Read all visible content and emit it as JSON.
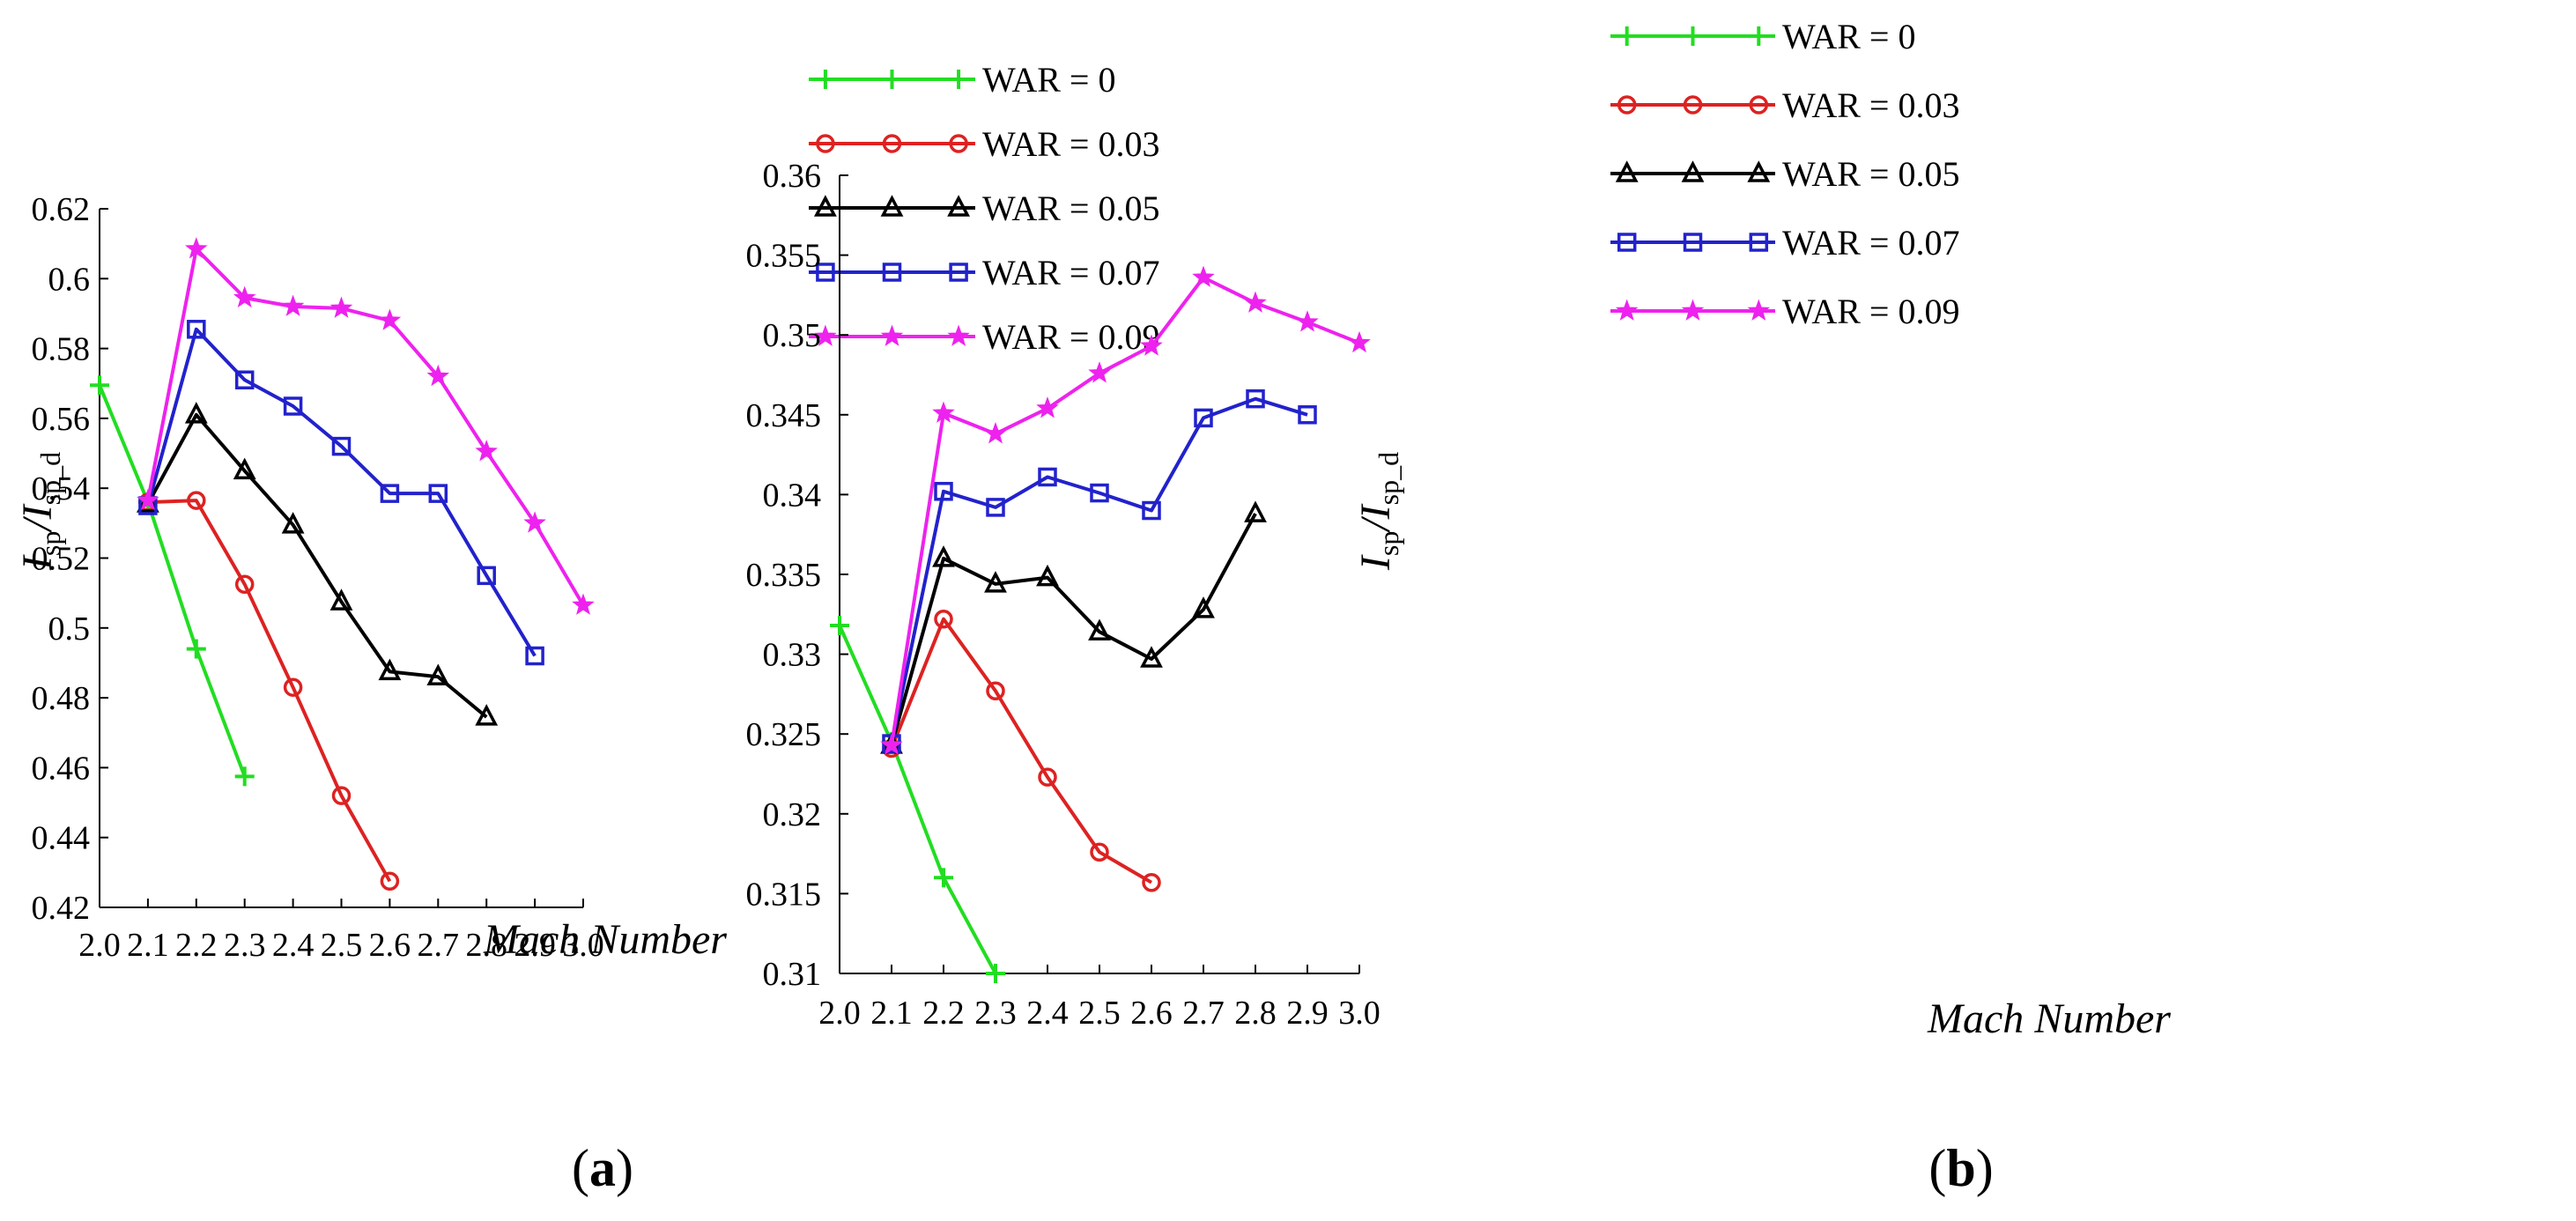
{
  "chart_data": [
    {
      "type": "line",
      "panel_label": "a",
      "xlabel": "Mach Number",
      "ylabel_main": "I",
      "ylabel_sub1": "sp",
      "ylabel_sub2": "sp_d",
      "x_ticks": [
        "2.0",
        "2.1",
        "2.2",
        "2.3",
        "2.4",
        "2.5",
        "2.6",
        "2.7",
        "2.8",
        "2.9",
        "3.0"
      ],
      "y_ticks": [
        "0.42",
        "0.44",
        "0.46",
        "0.48",
        "0.5",
        "0.52",
        "0.54",
        "0.56",
        "0.58",
        "0.6",
        "0.62"
      ],
      "xlim": [
        2.0,
        3.0
      ],
      "ylim": [
        0.42,
        0.62
      ],
      "legend_position": "top-right",
      "series": [
        {
          "name": "WAR = 0",
          "color": "#22dd22",
          "marker": "plus",
          "x": [
            2.0,
            2.1,
            2.2,
            2.3
          ],
          "values": [
            0.5695,
            0.536,
            0.494,
            0.4575
          ]
        },
        {
          "name": "WAR = 0.03",
          "color": "#dd2222",
          "marker": "circle",
          "x": [
            2.1,
            2.2,
            2.3,
            2.4,
            2.5,
            2.6
          ],
          "values": [
            0.536,
            0.5365,
            0.5125,
            0.483,
            0.452,
            0.4275
          ]
        },
        {
          "name": "WAR = 0.05",
          "color": "#000000",
          "marker": "triangle",
          "x": [
            2.1,
            2.2,
            2.3,
            2.4,
            2.5,
            2.6,
            2.7,
            2.8
          ],
          "values": [
            0.5355,
            0.561,
            0.545,
            0.5295,
            0.5075,
            0.4875,
            0.486,
            0.4745
          ]
        },
        {
          "name": "WAR = 0.07",
          "color": "#2222cc",
          "marker": "square",
          "x": [
            2.1,
            2.2,
            2.3,
            2.4,
            2.5,
            2.6,
            2.7,
            2.8,
            2.9
          ],
          "values": [
            0.535,
            0.5855,
            0.571,
            0.5635,
            0.552,
            0.5385,
            0.5385,
            0.515,
            0.492
          ]
        },
        {
          "name": "WAR = 0.09",
          "color": "#ee22ee",
          "marker": "star",
          "x": [
            2.1,
            2.2,
            2.3,
            2.4,
            2.5,
            2.6,
            2.7,
            2.8,
            2.9,
            3.0
          ],
          "values": [
            0.5365,
            0.6085,
            0.5945,
            0.592,
            0.5915,
            0.588,
            0.572,
            0.5505,
            0.53,
            0.5065
          ]
        }
      ]
    },
    {
      "type": "line",
      "panel_label": "b",
      "xlabel": "Mach Number",
      "ylabel_main": "I",
      "ylabel_sub1": "sp",
      "ylabel_sub2": "sp_d",
      "x_ticks": [
        "2.0",
        "2.1",
        "2.2",
        "2.3",
        "2.4",
        "2.5",
        "2.6",
        "2.7",
        "2.8",
        "2.9",
        "3.0"
      ],
      "y_ticks": [
        "0.31",
        "0.315",
        "0.32",
        "0.325",
        "0.33",
        "0.335",
        "0.34",
        "0.345",
        "0.35",
        "0.355",
        "0.36"
      ],
      "xlim": [
        2.0,
        3.0
      ],
      "ylim": [
        0.31,
        0.36
      ],
      "legend_position": "top-left",
      "series": [
        {
          "name": "WAR = 0",
          "color": "#22dd22",
          "marker": "plus",
          "x": [
            2.0,
            2.1,
            2.2,
            2.3
          ],
          "values": [
            0.3318,
            0.3245,
            0.316,
            0.31
          ]
        },
        {
          "name": "WAR = 0.03",
          "color": "#dd2222",
          "marker": "circle",
          "x": [
            2.1,
            2.2,
            2.3,
            2.4,
            2.5,
            2.6
          ],
          "values": [
            0.3241,
            0.3322,
            0.3277,
            0.3223,
            0.3176,
            0.3157
          ]
        },
        {
          "name": "WAR = 0.05",
          "color": "#000000",
          "marker": "triangle",
          "x": [
            2.1,
            2.2,
            2.3,
            2.4,
            2.5,
            2.6,
            2.7,
            2.8
          ],
          "values": [
            0.3243,
            0.336,
            0.3344,
            0.3348,
            0.3314,
            0.3297,
            0.3328,
            0.3388
          ]
        },
        {
          "name": "WAR = 0.07",
          "color": "#2222cc",
          "marker": "square",
          "x": [
            2.1,
            2.2,
            2.3,
            2.4,
            2.5,
            2.6,
            2.7,
            2.8,
            2.9
          ],
          "values": [
            0.3244,
            0.3402,
            0.3392,
            0.3411,
            0.3401,
            0.339,
            0.3448,
            0.346,
            0.345
          ]
        },
        {
          "name": "WAR = 0.09",
          "color": "#ee22ee",
          "marker": "star",
          "x": [
            2.1,
            2.2,
            2.3,
            2.4,
            2.5,
            2.6,
            2.7,
            2.8,
            2.9,
            3.0
          ],
          "values": [
            0.3243,
            0.3451,
            0.3438,
            0.3454,
            0.3476,
            0.3493,
            0.3536,
            0.352,
            0.3508,
            0.3495
          ]
        }
      ]
    }
  ]
}
